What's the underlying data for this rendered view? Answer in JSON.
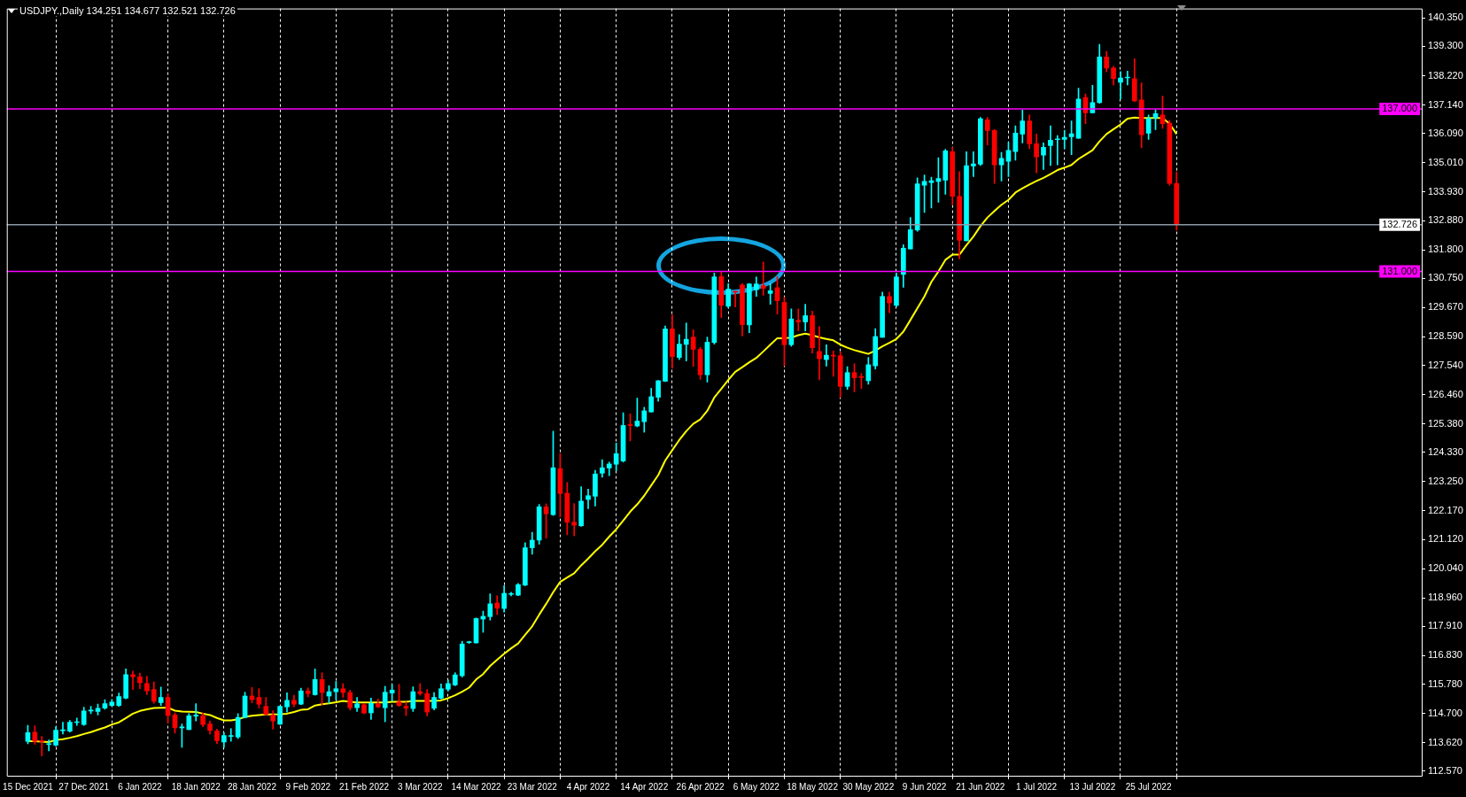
{
  "chart_data": {
    "type": "candlestick",
    "title": "USDJPY.,Daily 134.251 134.677 132.521 132.726",
    "categories": [
      "15 Dec 2021",
      null,
      null,
      null,
      null,
      null,
      null,
      null,
      "27 Dec 2021",
      null,
      null,
      null,
      null,
      null,
      null,
      null,
      "6 Jan 2022",
      null,
      null,
      null,
      null,
      null,
      null,
      null,
      "18 Jan 2022",
      null,
      null,
      null,
      null,
      null,
      null,
      null,
      "28 Jan 2022",
      null,
      null,
      null,
      null,
      null,
      null,
      null,
      "9 Feb 2022",
      null,
      null,
      null,
      null,
      null,
      null,
      null,
      "21 Feb 2022",
      null,
      null,
      null,
      null,
      null,
      null,
      null,
      "3 Mar 2022",
      null,
      null,
      null,
      null,
      null,
      null,
      null,
      "14 Mar 2022",
      null,
      null,
      null,
      null,
      null,
      null,
      null,
      "23 Mar 2022",
      null,
      null,
      null,
      null,
      null,
      null,
      null,
      "4 Apr 2022",
      null,
      null,
      null,
      null,
      null,
      null,
      null,
      "14 Apr 2022",
      null,
      null,
      null,
      null,
      null,
      null,
      null,
      "26 Apr 2022",
      null,
      null,
      null,
      null,
      null,
      null,
      null,
      "6 May 2022",
      null,
      null,
      null,
      null,
      null,
      null,
      null,
      "18 May 2022",
      null,
      null,
      null,
      null,
      null,
      null,
      null,
      "30 May 2022",
      null,
      null,
      null,
      null,
      null,
      null,
      null,
      "9 Jun 2022",
      null,
      null,
      null,
      null,
      null,
      null,
      null,
      "21 Jun 2022",
      null,
      null,
      null,
      null,
      null,
      null,
      null,
      "1 Jul 2022",
      null,
      null,
      null,
      null,
      null,
      null,
      null,
      "13 Jul 2022",
      null,
      null,
      null,
      null,
      null,
      null,
      null,
      "25 Jul 2022",
      null,
      null,
      null,
      null
    ],
    "ohlc": [
      [
        113.67,
        114.26,
        113.58,
        113.99
      ],
      [
        114.01,
        114.24,
        113.56,
        113.67
      ],
      [
        113.67,
        113.85,
        113.13,
        113.66
      ],
      [
        113.55,
        113.72,
        113.32,
        113.57
      ],
      [
        113.53,
        114.21,
        113.5,
        114.08
      ],
      [
        114.06,
        114.37,
        113.94,
        114.1
      ],
      [
        114.04,
        114.44,
        114.01,
        114.37
      ],
      [
        114.36,
        114.53,
        114.26,
        114.38
      ],
      [
        114.29,
        114.93,
        114.26,
        114.79
      ],
      [
        114.79,
        114.96,
        114.69,
        114.8
      ],
      [
        114.77,
        115.04,
        114.64,
        114.89
      ],
      [
        114.89,
        115.21,
        114.85,
        115.06
      ],
      [
        114.99,
        115.21,
        114.97,
        115.12
      ],
      [
        114.99,
        115.45,
        114.96,
        115.32
      ],
      [
        115.26,
        116.34,
        115.24,
        116.13
      ],
      [
        116.13,
        116.26,
        115.58,
        116.05
      ],
      [
        116.05,
        116.19,
        115.61,
        115.83
      ],
      [
        115.8,
        116.07,
        115.39,
        115.53
      ],
      [
        115.58,
        115.86,
        115.07,
        115.15
      ],
      [
        115.1,
        115.67,
        114.99,
        115.29
      ],
      [
        115.29,
        115.42,
        114.35,
        114.62
      ],
      [
        114.64,
        114.72,
        113.97,
        114.17
      ],
      [
        114.17,
        114.31,
        113.45,
        114.18
      ],
      [
        114.1,
        114.69,
        114.1,
        114.61
      ],
      [
        114.6,
        115.06,
        114.42,
        114.61
      ],
      [
        114.61,
        114.72,
        114.21,
        114.29
      ],
      [
        114.31,
        114.42,
        113.94,
        114.07
      ],
      [
        114.05,
        114.12,
        113.58,
        113.69
      ],
      [
        113.64,
        113.99,
        113.45,
        113.88
      ],
      [
        113.85,
        114.14,
        113.67,
        113.86
      ],
      [
        113.83,
        114.69,
        113.77,
        114.55
      ],
      [
        114.55,
        115.48,
        114.53,
        115.34
      ],
      [
        115.34,
        115.66,
        115.09,
        115.21
      ],
      [
        115.29,
        115.61,
        114.9,
        115.04
      ],
      [
        114.96,
        115.29,
        114.64,
        114.66
      ],
      [
        114.64,
        114.8,
        114.12,
        114.42
      ],
      [
        114.3,
        114.98,
        114.29,
        114.96
      ],
      [
        114.94,
        115.46,
        114.75,
        115.18
      ],
      [
        115.18,
        115.37,
        114.94,
        115.04
      ],
      [
        115.04,
        115.63,
        115.02,
        115.53
      ],
      [
        115.53,
        115.64,
        115.31,
        115.43
      ],
      [
        115.39,
        116.34,
        115.37,
        115.95
      ],
      [
        115.95,
        116.2,
        115.02,
        115.47
      ],
      [
        115.34,
        115.72,
        115.07,
        115.5
      ],
      [
        115.5,
        115.88,
        115.2,
        115.61
      ],
      [
        115.61,
        115.8,
        115.29,
        115.47
      ],
      [
        115.47,
        115.56,
        114.83,
        114.91
      ],
      [
        114.91,
        115.29,
        114.77,
        115.05
      ],
      [
        115.02,
        115.07,
        114.69,
        114.71
      ],
      [
        114.72,
        115.26,
        114.48,
        115.07
      ],
      [
        115.05,
        115.23,
        114.91,
        114.94
      ],
      [
        114.91,
        115.7,
        114.39,
        115.48
      ],
      [
        115.45,
        115.77,
        115.15,
        115.56
      ],
      [
        115.12,
        115.77,
        114.96,
        114.99
      ],
      [
        114.96,
        115.12,
        114.62,
        114.89
      ],
      [
        114.88,
        115.68,
        114.77,
        115.5
      ],
      [
        115.5,
        115.8,
        115.37,
        115.43
      ],
      [
        115.43,
        115.58,
        114.61,
        114.75
      ],
      [
        114.89,
        115.47,
        114.83,
        115.29
      ],
      [
        115.26,
        115.79,
        115.23,
        115.61
      ],
      [
        115.59,
        115.93,
        115.52,
        115.8
      ],
      [
        115.75,
        116.2,
        115.72,
        116.12
      ],
      [
        116.09,
        117.36,
        116.04,
        117.26
      ],
      [
        117.31,
        117.36,
        117.28,
        117.32
      ],
      [
        117.3,
        118.22,
        117.29,
        118.2
      ],
      [
        118.18,
        118.47,
        117.69,
        118.28
      ],
      [
        118.27,
        119.11,
        118.14,
        118.74
      ],
      [
        118.77,
        119.04,
        118.34,
        118.58
      ],
      [
        118.57,
        119.41,
        118.44,
        119.13
      ],
      [
        119.09,
        119.17,
        119.03,
        119.1
      ],
      [
        119.06,
        119.49,
        119.04,
        119.45
      ],
      [
        119.43,
        121.0,
        119.41,
        120.81
      ],
      [
        120.81,
        121.38,
        120.57,
        121.09
      ],
      [
        121.09,
        122.41,
        120.94,
        122.32
      ],
      [
        122.32,
        122.43,
        121.16,
        122.06
      ],
      [
        122.03,
        125.11,
        122.0,
        123.76
      ],
      [
        123.73,
        124.29,
        121.95,
        122.81
      ],
      [
        122.82,
        123.22,
        121.29,
        121.75
      ],
      [
        121.75,
        122.44,
        121.25,
        121.64
      ],
      [
        121.62,
        123.06,
        121.6,
        122.53
      ],
      [
        122.59,
        122.97,
        122.25,
        122.73
      ],
      [
        122.71,
        123.67,
        122.35,
        123.53
      ],
      [
        123.56,
        124.06,
        123.41,
        123.76
      ],
      [
        123.75,
        123.97,
        123.47,
        123.9
      ],
      [
        123.89,
        124.67,
        123.65,
        124.28
      ],
      [
        124.01,
        125.79,
        123.97,
        125.32
      ],
      [
        125.33,
        125.75,
        124.75,
        125.32
      ],
      [
        125.3,
        126.33,
        125.27,
        125.48
      ],
      [
        125.46,
        125.99,
        125.07,
        125.86
      ],
      [
        125.82,
        126.69,
        125.81,
        126.38
      ],
      [
        126.36,
        126.98,
        126.21,
        126.97
      ],
      [
        126.95,
        128.99,
        126.94,
        128.88
      ],
      [
        128.88,
        129.4,
        127.43,
        127.86
      ],
      [
        127.83,
        128.67,
        127.75,
        128.32
      ],
      [
        128.31,
        129.1,
        127.7,
        128.5
      ],
      [
        128.58,
        128.85,
        127.5,
        128.13
      ],
      [
        128.13,
        128.2,
        127.02,
        127.19
      ],
      [
        127.19,
        128.58,
        126.92,
        128.39
      ],
      [
        128.38,
        130.94,
        128.32,
        130.8
      ],
      [
        130.81,
        130.97,
        129.3,
        129.75
      ],
      [
        129.72,
        130.55,
        129.66,
        130.35
      ],
      [
        130.25,
        130.27,
        129.69,
        130.24
      ],
      [
        130.5,
        130.56,
        128.62,
        129.04
      ],
      [
        129.03,
        130.56,
        128.74,
        130.54
      ],
      [
        130.33,
        130.8,
        130.08,
        130.54
      ],
      [
        130.48,
        131.35,
        130.12,
        130.38
      ],
      [
        130.19,
        130.55,
        129.79,
        130.29
      ],
      [
        130.4,
        130.81,
        129.43,
        129.92
      ],
      [
        129.86,
        130.05,
        127.52,
        128.3
      ],
      [
        128.3,
        129.62,
        128.24,
        129.25
      ],
      [
        129.2,
        129.62,
        128.81,
        129.14
      ],
      [
        129.14,
        129.79,
        128.81,
        129.37
      ],
      [
        129.37,
        129.54,
        127.99,
        128.19
      ],
      [
        128.05,
        128.97,
        127.0,
        127.78
      ],
      [
        127.75,
        128.3,
        127.51,
        127.91
      ],
      [
        127.89,
        128.07,
        127.13,
        127.88
      ],
      [
        127.89,
        128.03,
        126.35,
        126.76
      ],
      [
        126.76,
        127.49,
        126.65,
        127.27
      ],
      [
        127.27,
        127.6,
        126.56,
        127.08
      ],
      [
        127.1,
        127.24,
        126.68,
        127.09
      ],
      [
        126.97,
        127.83,
        126.84,
        127.56
      ],
      [
        127.52,
        128.89,
        127.4,
        128.6
      ],
      [
        128.57,
        130.24,
        128.57,
        130.08
      ],
      [
        130.08,
        130.24,
        129.48,
        129.84
      ],
      [
        129.75,
        130.94,
        129.7,
        130.8
      ],
      [
        130.89,
        131.99,
        130.42,
        131.86
      ],
      [
        131.83,
        132.99,
        131.83,
        132.54
      ],
      [
        132.53,
        134.45,
        132.48,
        134.23
      ],
      [
        134.18,
        134.56,
        133.18,
        134.32
      ],
      [
        134.28,
        134.48,
        133.34,
        134.35
      ],
      [
        134.32,
        135.2,
        133.55,
        134.43
      ],
      [
        134.37,
        135.51,
        133.85,
        135.45
      ],
      [
        135.42,
        135.58,
        133.46,
        133.77
      ],
      [
        133.77,
        134.68,
        131.46,
        132.15
      ],
      [
        132.13,
        135.42,
        132.13,
        134.9
      ],
      [
        134.89,
        135.42,
        134.5,
        134.97
      ],
      [
        134.96,
        136.68,
        134.91,
        136.63
      ],
      [
        136.59,
        136.68,
        135.67,
        136.2
      ],
      [
        136.2,
        136.23,
        134.25,
        134.93
      ],
      [
        134.93,
        135.39,
        134.34,
        135.17
      ],
      [
        135.06,
        135.77,
        134.5,
        135.47
      ],
      [
        135.42,
        136.37,
        135.1,
        136.1
      ],
      [
        136.07,
        136.95,
        135.74,
        136.55
      ],
      [
        136.55,
        136.77,
        135.53,
        135.71
      ],
      [
        135.71,
        136.07,
        134.64,
        135.23
      ],
      [
        135.29,
        135.74,
        134.76,
        135.58
      ],
      [
        135.64,
        136.37,
        134.91,
        135.84
      ],
      [
        135.86,
        136.01,
        134.93,
        135.88
      ],
      [
        135.87,
        136.21,
        135.53,
        135.95
      ],
      [
        135.97,
        136.55,
        135.31,
        136.08
      ],
      [
        135.91,
        137.76,
        135.91,
        137.36
      ],
      [
        137.42,
        137.55,
        136.45,
        136.85
      ],
      [
        136.85,
        137.87,
        136.85,
        137.23
      ],
      [
        137.23,
        139.38,
        137.2,
        138.91
      ],
      [
        138.91,
        139.12,
        138.37,
        138.5
      ],
      [
        138.5,
        138.57,
        137.88,
        138.12
      ],
      [
        137.98,
        138.37,
        137.36,
        138.14
      ],
      [
        138.14,
        138.39,
        137.88,
        138.15
      ],
      [
        138.11,
        138.85,
        137.26,
        137.29
      ],
      [
        137.33,
        137.96,
        135.56,
        136.04
      ],
      [
        136.1,
        136.77,
        135.87,
        136.64
      ],
      [
        136.66,
        136.96,
        136.23,
        136.82
      ],
      [
        136.77,
        137.47,
        136.28,
        136.45
      ],
      [
        136.47,
        136.58,
        134.18,
        134.25
      ],
      [
        134.251,
        134.677,
        132.521,
        132.726
      ]
    ],
    "colors": [
      "#00ffff",
      "#ff0000",
      "#ff0000",
      "#00ffff",
      "#00ffff",
      "#00ffff",
      "#00ffff",
      "#00ffff",
      "#00ffff",
      "#00ffff",
      "#00ffff",
      "#00ffff",
      "#00ffff",
      "#00ffff",
      "#00ffff",
      "#ff0000",
      "#ff0000",
      "#ff0000",
      "#ff0000",
      "#00ffff",
      "#ff0000",
      "#ff0000",
      "#00ffff",
      "#00ffff",
      "#00ffff",
      "#ff0000",
      "#ff0000",
      "#ff0000",
      "#00ffff",
      "#00ffff",
      "#00ffff",
      "#00ffff",
      "#ff0000",
      "#ff0000",
      "#ff0000",
      "#ff0000",
      "#00ffff",
      "#00ffff",
      "#ff0000",
      "#00ffff",
      "#ff0000",
      "#00ffff",
      "#ff0000",
      "#00ffff",
      "#00ffff",
      "#ff0000",
      "#ff0000",
      "#00ffff",
      "#ff0000",
      "#00ffff",
      "#ff0000",
      "#00ffff",
      "#00ffff",
      "#ff0000",
      "#ff0000",
      "#00ffff",
      "#ff0000",
      "#ff0000",
      "#00ffff",
      "#00ffff",
      "#00ffff",
      "#00ffff",
      "#00ffff",
      "#00ffff",
      "#00ffff",
      "#00ffff",
      "#00ffff",
      "#ff0000",
      "#00ffff",
      "#00ffff",
      "#00ffff",
      "#00ffff",
      "#00ffff",
      "#00ffff",
      "#ff0000",
      "#00ffff",
      "#ff0000",
      "#ff0000",
      "#ff0000",
      "#00ffff",
      "#00ffff",
      "#00ffff",
      "#00ffff",
      "#00ffff",
      "#00ffff",
      "#00ffff",
      "#ff0000",
      "#00ffff",
      "#00ffff",
      "#00ffff",
      "#00ffff",
      "#00ffff",
      "#ff0000",
      "#00ffff",
      "#00ffff",
      "#ff0000",
      "#ff0000",
      "#00ffff",
      "#00ffff",
      "#ff0000",
      "#00ffff",
      "#ff0000",
      "#ff0000",
      "#00ffff",
      "#00ffff",
      "#ff0000",
      "#00ffff",
      "#ff0000",
      "#ff0000",
      "#00ffff",
      "#ff0000",
      "#00ffff",
      "#ff0000",
      "#ff0000",
      "#00ffff",
      "#ff0000",
      "#ff0000",
      "#00ffff",
      "#ff0000",
      "#ff0000",
      "#00ffff",
      "#00ffff",
      "#00ffff",
      "#ff0000",
      "#00ffff",
      "#00ffff",
      "#00ffff",
      "#00ffff",
      "#00ffff",
      "#00ffff",
      "#00ffff",
      "#00ffff",
      "#ff0000",
      "#ff0000",
      "#00ffff",
      "#00ffff",
      "#00ffff",
      "#ff0000",
      "#ff0000",
      "#00ffff",
      "#00ffff",
      "#00ffff",
      "#00ffff",
      "#ff0000",
      "#ff0000",
      "#00ffff",
      "#00ffff",
      "#00ffff",
      "#00ffff",
      "#00ffff",
      "#00ffff",
      "#ff0000",
      "#00ffff",
      "#00ffff",
      "#ff0000",
      "#ff0000",
      "#00ffff",
      "#00ffff",
      "#ff0000",
      "#ff0000",
      "#00ffff",
      "#00ffff",
      "#ff0000",
      "#ff0000",
      "#ff0000"
    ],
    "series": [
      {
        "type": "line",
        "color": "#ffff00",
        "marker": "none",
        "values": [
          113.67,
          113.67,
          113.66,
          113.64,
          113.72,
          113.75,
          113.8,
          113.86,
          113.94,
          114.01,
          114.1,
          114.18,
          114.29,
          114.37,
          114.53,
          114.69,
          114.79,
          114.85,
          114.9,
          114.91,
          114.91,
          114.8,
          114.77,
          114.76,
          114.75,
          114.69,
          114.64,
          114.53,
          114.44,
          114.44,
          114.48,
          114.57,
          114.61,
          114.64,
          114.66,
          114.66,
          114.67,
          114.69,
          114.75,
          114.83,
          114.85,
          114.99,
          115.04,
          115.07,
          115.11,
          115.16,
          115.13,
          115.1,
          115.1,
          115.1,
          115.1,
          115.1,
          115.13,
          115.13,
          115.13,
          115.16,
          115.16,
          115.16,
          115.16,
          115.18,
          115.26,
          115.37,
          115.5,
          115.65,
          115.95,
          116.15,
          116.45,
          116.68,
          116.9,
          117.1,
          117.28,
          117.6,
          117.91,
          118.34,
          118.74,
          119.17,
          119.55,
          119.71,
          119.87,
          120.16,
          120.41,
          120.68,
          120.92,
          121.22,
          121.49,
          121.81,
          122.14,
          122.41,
          122.73,
          123.11,
          123.49,
          124.03,
          124.41,
          124.78,
          125.11,
          125.38,
          125.54,
          125.86,
          126.35,
          126.67,
          127.0,
          127.3,
          127.47,
          127.65,
          127.81,
          128.05,
          128.3,
          128.54,
          128.54,
          128.56,
          128.65,
          128.71,
          128.65,
          128.57,
          128.51,
          128.46,
          128.3,
          128.19,
          128.1,
          128.03,
          127.96,
          128.08,
          128.24,
          128.37,
          128.51,
          128.78,
          129.21,
          129.65,
          130.08,
          130.62,
          131.0,
          131.43,
          131.62,
          131.62,
          131.97,
          132.29,
          132.67,
          132.99,
          133.23,
          133.46,
          133.64,
          133.91,
          134.07,
          134.21,
          134.34,
          134.45,
          134.59,
          134.74,
          134.83,
          134.93,
          135.15,
          135.31,
          135.47,
          135.8,
          136.07,
          136.25,
          136.42,
          136.64,
          136.68,
          136.66,
          136.66,
          136.66,
          136.66,
          136.45,
          136.07
        ]
      }
    ],
    "ylim": [
      112.4,
      140.7
    ],
    "yticks": [
      {
        "value": 112.57,
        "label": "112.570"
      },
      {
        "value": 113.62,
        "label": "113.620"
      },
      {
        "value": 114.7,
        "label": "114.700"
      },
      {
        "value": 115.78,
        "label": "115.780"
      },
      {
        "value": 116.83,
        "label": "116.830"
      },
      {
        "value": 117.91,
        "label": "117.910"
      },
      {
        "value": 118.96,
        "label": "118.960"
      },
      {
        "value": 120.04,
        "label": "120.040"
      },
      {
        "value": 121.12,
        "label": "121.120"
      },
      {
        "value": 122.17,
        "label": "122.170"
      },
      {
        "value": 123.25,
        "label": "123.250"
      },
      {
        "value": 124.33,
        "label": "124.330"
      },
      {
        "value": 125.38,
        "label": "125.380"
      },
      {
        "value": 126.46,
        "label": "126.460"
      },
      {
        "value": 127.54,
        "label": "127.540"
      },
      {
        "value": 128.59,
        "label": "128.590"
      },
      {
        "value": 129.67,
        "label": "129.670"
      },
      {
        "value": 130.75,
        "label": "130.750"
      },
      {
        "value": 131.8,
        "label": "131.800"
      },
      {
        "value": 132.88,
        "label": "132.880"
      },
      {
        "value": 133.93,
        "label": "133.930"
      },
      {
        "value": 135.01,
        "label": "135.010"
      },
      {
        "value": 136.09,
        "label": "136.090"
      },
      {
        "value": 137.14,
        "label": "137.140"
      },
      {
        "value": 138.22,
        "label": "138.220"
      },
      {
        "value": 139.3,
        "label": "139.300"
      },
      {
        "value": 140.35,
        "label": "140.350"
      }
    ],
    "grid": "x",
    "ref_lines": [
      {
        "axis": "y",
        "value": 137,
        "label": "137.000",
        "color": "#ff00ff"
      },
      {
        "axis": "y",
        "value": 131,
        "label": "131.000",
        "color": "#ff00ff"
      },
      {
        "axis": "y",
        "value": 132.726,
        "label": "132.726",
        "color": "#8c99a6"
      }
    ]
  }
}
